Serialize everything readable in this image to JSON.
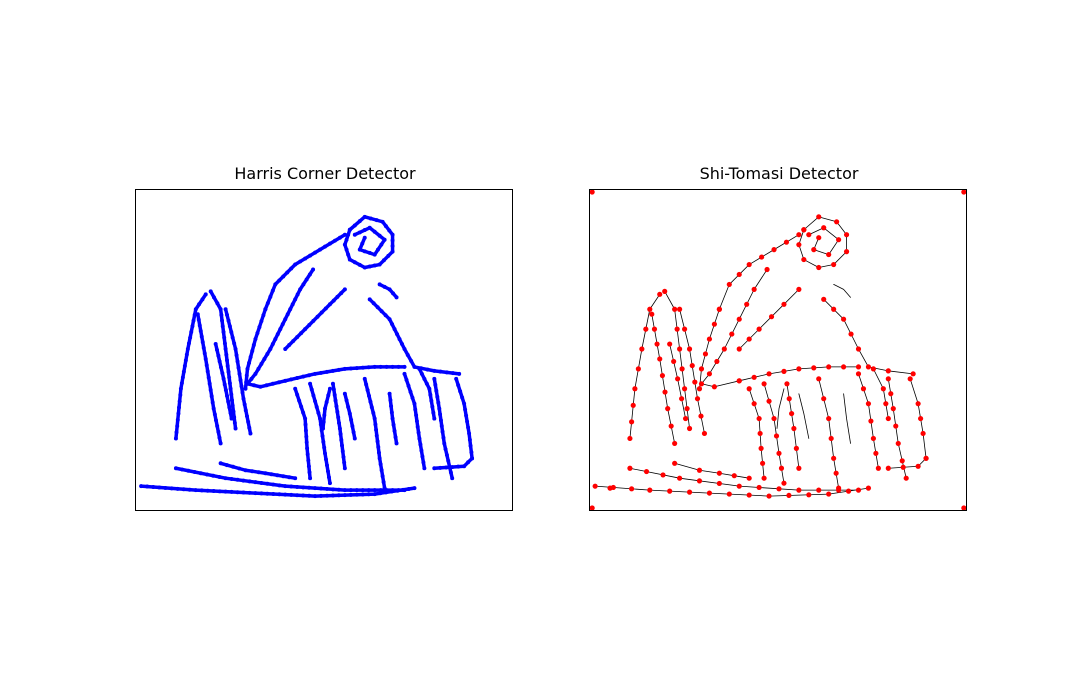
{
  "panels": [
    {
      "title": "Harris Corner Detector",
      "marker_color": "#0000ff"
    },
    {
      "title": "Shi-Tomasi Detector",
      "marker_color": "#ff0000",
      "edge_color": "#000000"
    }
  ]
}
